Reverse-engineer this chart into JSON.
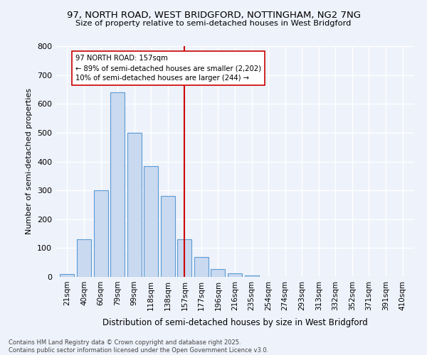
{
  "title_line1": "97, NORTH ROAD, WEST BRIDGFORD, NOTTINGHAM, NG2 7NG",
  "title_line2": "Size of property relative to semi-detached houses in West Bridgford",
  "xlabel": "Distribution of semi-detached houses by size in West Bridgford",
  "ylabel": "Number of semi-detached properties",
  "categories": [
    "21sqm",
    "40sqm",
    "60sqm",
    "79sqm",
    "99sqm",
    "118sqm",
    "138sqm",
    "157sqm",
    "177sqm",
    "196sqm",
    "216sqm",
    "235sqm",
    "254sqm",
    "274sqm",
    "293sqm",
    "313sqm",
    "332sqm",
    "352sqm",
    "371sqm",
    "391sqm",
    "410sqm"
  ],
  "values": [
    10,
    130,
    300,
    640,
    500,
    385,
    280,
    130,
    70,
    28,
    13,
    5,
    0,
    0,
    0,
    0,
    0,
    0,
    0,
    0,
    0
  ],
  "bar_color_face": "#c9d9f0",
  "bar_color_edge": "#5b9bd5",
  "vline_x_idx": 7,
  "annotation_title": "97 NORTH ROAD: 157sqm",
  "annotation_line1": "← 89% of semi-detached houses are smaller (2,202)",
  "annotation_line2": "10% of semi-detached houses are larger (244) →",
  "vline_color": "#cc0000",
  "ylim": [
    0,
    800
  ],
  "yticks": [
    0,
    100,
    200,
    300,
    400,
    500,
    600,
    700,
    800
  ],
  "footer_line1": "Contains HM Land Registry data © Crown copyright and database right 2025.",
  "footer_line2": "Contains public sector information licensed under the Open Government Licence v3.0.",
  "background_color": "#eef2fb",
  "grid_color": "#ffffff"
}
